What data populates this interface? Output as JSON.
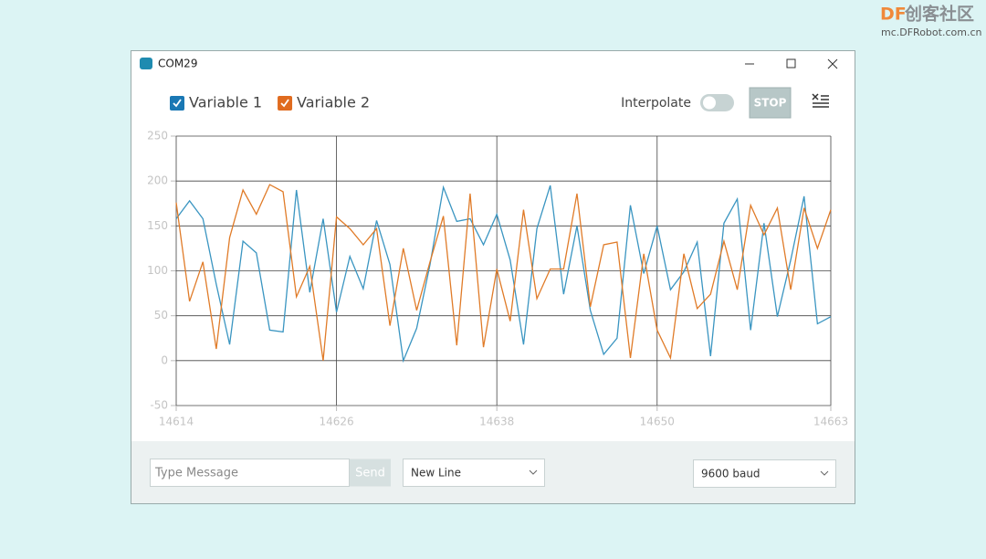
{
  "watermark": {
    "brand_a": "DF",
    "brand_b": "创客社区",
    "url": "mc.DFRobot.com.cn"
  },
  "window": {
    "title": "COM29"
  },
  "toolbar": {
    "interpolate": "Interpolate",
    "stop": "STOP"
  },
  "chart_data": {
    "type": "line",
    "x": [
      14614,
      14615,
      14616,
      14617,
      14618,
      14619,
      14620,
      14621,
      14622,
      14623,
      14624,
      14625,
      14626,
      14627,
      14628,
      14629,
      14630,
      14631,
      14632,
      14633,
      14634,
      14635,
      14636,
      14637,
      14638,
      14639,
      14640,
      14641,
      14642,
      14643,
      14644,
      14645,
      14646,
      14647,
      14648,
      14649,
      14650,
      14651,
      14652,
      14653,
      14654,
      14655,
      14656,
      14657,
      14658,
      14659,
      14660,
      14661,
      14662,
      14663
    ],
    "series": [
      {
        "name": "Variable 1",
        "color": "#3a95c1",
        "check_color": "#1a78b4",
        "values": [
          158,
          178,
          158,
          85,
          18,
          133,
          120,
          34,
          32,
          190,
          76,
          158,
          54,
          116,
          80,
          156,
          107,
          0,
          36,
          107,
          193,
          155,
          158,
          129,
          163,
          112,
          18,
          147,
          195,
          74,
          150,
          56,
          7,
          25,
          173,
          97,
          150,
          79,
          99,
          132,
          5,
          153,
          180,
          34,
          153,
          49,
          112,
          183,
          41,
          49
        ]
      },
      {
        "name": "Variable 2",
        "color": "#e07b28",
        "check_color": "#e06b1f",
        "values": [
          176,
          66,
          110,
          13,
          137,
          190,
          163,
          196,
          188,
          71,
          105,
          0,
          160,
          147,
          129,
          147,
          39,
          125,
          56,
          110,
          161,
          17,
          186,
          15,
          102,
          44,
          168,
          69,
          102,
          102,
          186,
          60,
          129,
          132,
          3,
          119,
          34,
          3,
          119,
          58,
          74,
          133,
          79,
          173,
          140,
          170,
          79,
          170,
          125,
          168
        ]
      }
    ],
    "xlim": [
      14614,
      14663
    ],
    "xticks": [
      14614,
      14626,
      14638,
      14650,
      14663
    ],
    "ylim": [
      -50,
      250
    ],
    "yticks": [
      -50,
      0,
      50,
      100,
      150,
      200,
      250
    ],
    "grid": true
  },
  "footer": {
    "message_placeholder": "Type Message",
    "send": "Send",
    "line_ending": "New Line",
    "baud": "9600 baud"
  }
}
